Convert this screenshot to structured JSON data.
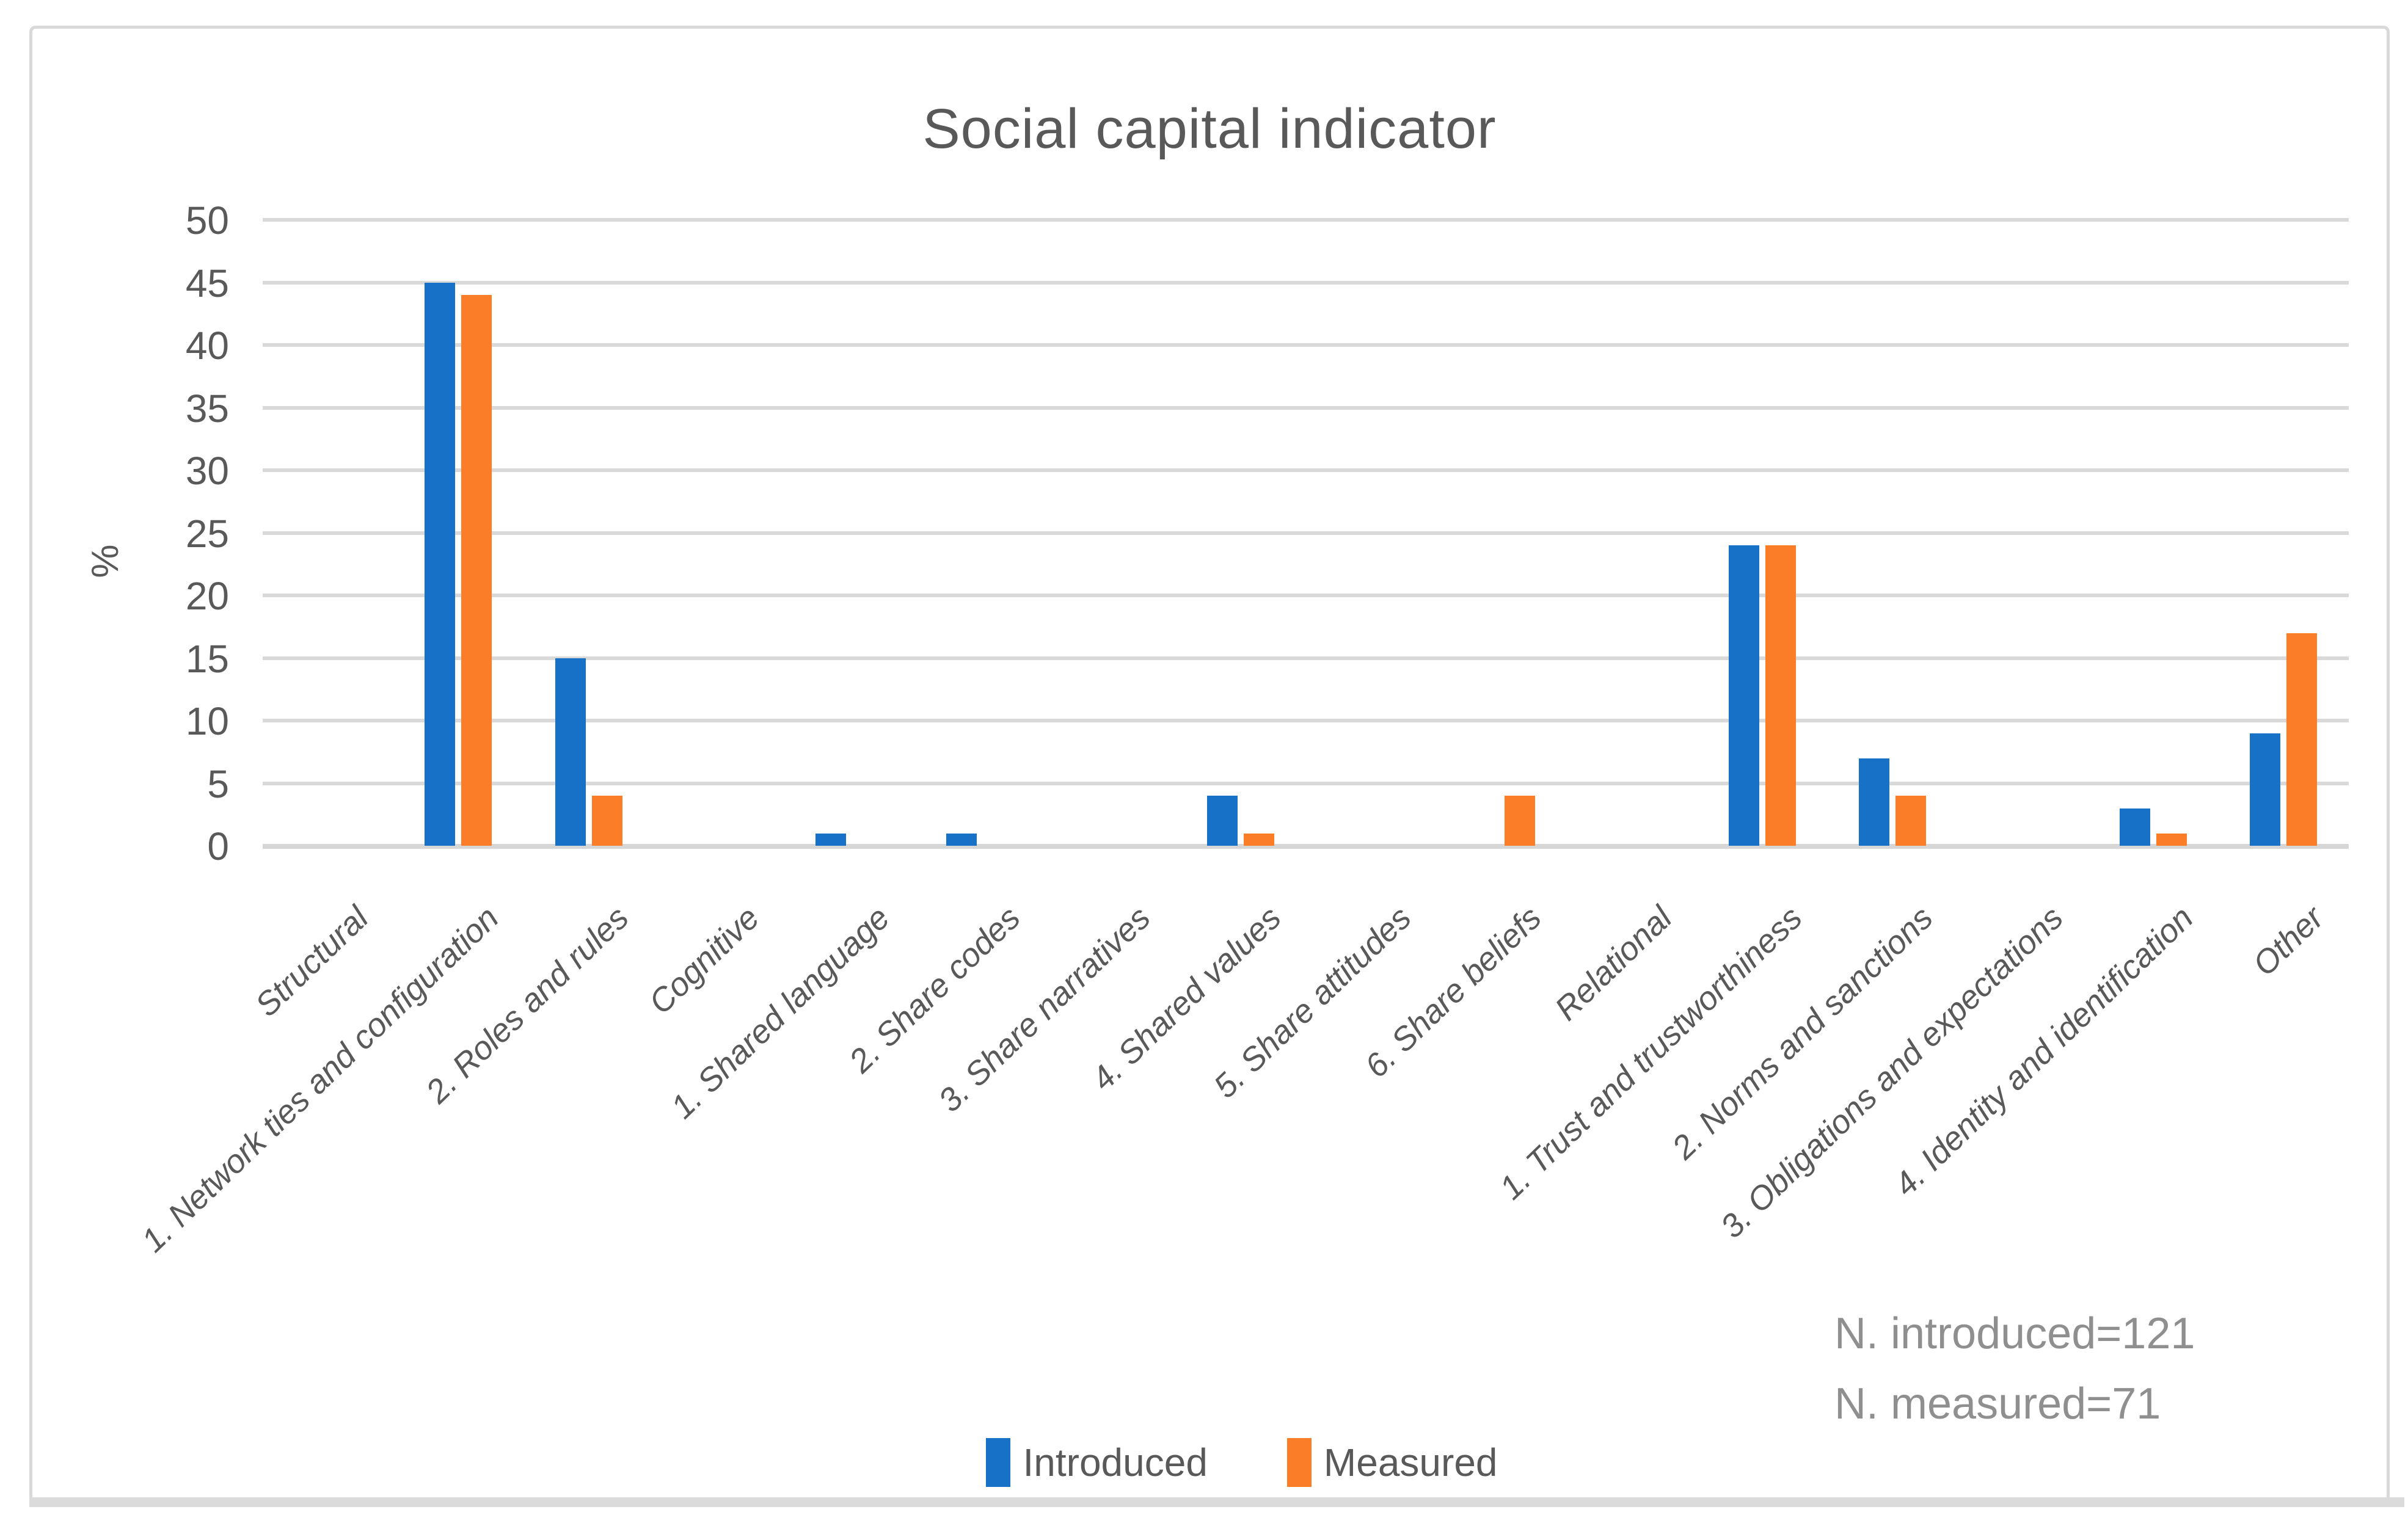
{
  "chart_data": {
    "type": "bar",
    "title": "Social capital indicator",
    "xlabel": "",
    "ylabel": "%",
    "ylim": [
      0,
      50
    ],
    "ytick_step": 5,
    "grid": true,
    "legend_position": "bottom",
    "categories": [
      "Structural",
      "1. Network ties and configuration",
      "2. Roles and rules",
      "Cognitive",
      "1. Shared language",
      "2. Share codes",
      "3. Share narratives",
      "4. Shared values",
      "5. Share attitudes",
      "6. Share beliefs",
      "Relational",
      "1. Trust and trustworthiness",
      "2. Norms and sanctions",
      "3. Obligations and expectations",
      "4. Identity and identification",
      "Other"
    ],
    "series": [
      {
        "name": "Introduced",
        "color": "#1772C7",
        "values": [
          0,
          45,
          15,
          0,
          1,
          1,
          0,
          4,
          0,
          0,
          0,
          24,
          7,
          0,
          3,
          9
        ]
      },
      {
        "name": "Measured",
        "color": "#FB7D28",
        "values": [
          0,
          44,
          4,
          0,
          0,
          0,
          0,
          1,
          0,
          4,
          0,
          24,
          4,
          0,
          1,
          17
        ]
      }
    ],
    "annotations": {
      "line1": "N. introduced=121",
      "line2": "N. measured=71"
    }
  },
  "colors": {
    "grid": "#d9d9d9",
    "axis_text": "#595959",
    "annotation_text": "#8f8f8f",
    "frame_border": "#d9d9d9"
  }
}
